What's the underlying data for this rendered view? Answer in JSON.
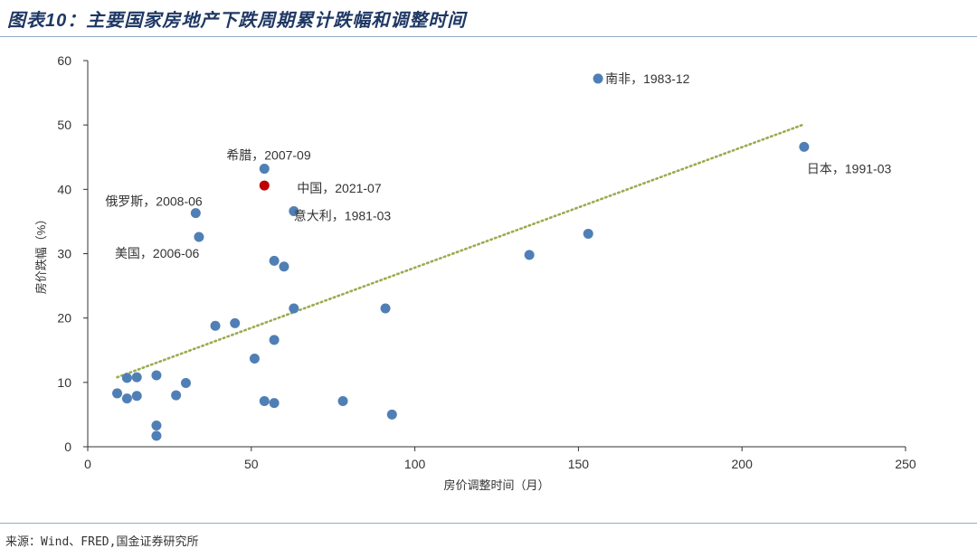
{
  "title": "图表10：主要国家房地产下跌周期累计跌幅和调整时间",
  "source": "来源：Wind、FRED,国金证券研究所",
  "colors": {
    "point": "#4f7fb5",
    "highlight": "#c00000",
    "trend": "#9aab4f",
    "title": "#1f3864"
  },
  "chart_data": {
    "type": "scatter",
    "title": "",
    "xlabel": "房价调整时间（月）",
    "ylabel": "房价跌幅（%）",
    "xlim": [
      0,
      250
    ],
    "ylim": [
      0,
      60
    ],
    "x_ticks": [
      "0",
      "50",
      "100",
      "150",
      "200",
      "250"
    ],
    "y_ticks": [
      "0",
      "10",
      "20",
      "30",
      "40",
      "50",
      "60"
    ],
    "grid": false,
    "trendline": {
      "style": "dotted",
      "x": [
        9,
        219
      ],
      "y": [
        10.8,
        50.1
      ]
    },
    "points": [
      {
        "x": 156,
        "y": 57.2,
        "label": "南非，1983-12"
      },
      {
        "x": 219,
        "y": 46.6,
        "label": "日本，1991-03"
      },
      {
        "x": 54,
        "y": 43.2,
        "label": "希腊，2007-09"
      },
      {
        "x": 54,
        "y": 40.6,
        "label": "中国，2021-07",
        "highlight": true
      },
      {
        "x": 63,
        "y": 36.6,
        "label": "意大利，1981-03"
      },
      {
        "x": 33,
        "y": 36.3,
        "label": "俄罗斯，2008-06"
      },
      {
        "x": 34,
        "y": 32.6,
        "label": "美国，2006-06"
      },
      {
        "x": 153,
        "y": 33.1,
        "label": ""
      },
      {
        "x": 135,
        "y": 29.8,
        "label": ""
      },
      {
        "x": 57,
        "y": 28.9,
        "label": ""
      },
      {
        "x": 60,
        "y": 28.0,
        "label": ""
      },
      {
        "x": 63,
        "y": 21.5,
        "label": ""
      },
      {
        "x": 91,
        "y": 21.5,
        "label": ""
      },
      {
        "x": 39,
        "y": 18.8,
        "label": ""
      },
      {
        "x": 45,
        "y": 19.2,
        "label": ""
      },
      {
        "x": 57,
        "y": 16.6,
        "label": ""
      },
      {
        "x": 51,
        "y": 13.7,
        "label": ""
      },
      {
        "x": 12,
        "y": 10.7,
        "label": ""
      },
      {
        "x": 15,
        "y": 10.8,
        "label": ""
      },
      {
        "x": 21,
        "y": 11.1,
        "label": ""
      },
      {
        "x": 30,
        "y": 9.9,
        "label": ""
      },
      {
        "x": 9,
        "y": 8.3,
        "label": ""
      },
      {
        "x": 12,
        "y": 7.5,
        "label": ""
      },
      {
        "x": 15,
        "y": 7.9,
        "label": ""
      },
      {
        "x": 27,
        "y": 8.0,
        "label": ""
      },
      {
        "x": 54,
        "y": 7.1,
        "label": ""
      },
      {
        "x": 57,
        "y": 6.8,
        "label": ""
      },
      {
        "x": 78,
        "y": 7.1,
        "label": ""
      },
      {
        "x": 93,
        "y": 5.0,
        "label": ""
      },
      {
        "x": 21,
        "y": 3.3,
        "label": ""
      },
      {
        "x": 21,
        "y": 1.7,
        "label": ""
      }
    ]
  }
}
